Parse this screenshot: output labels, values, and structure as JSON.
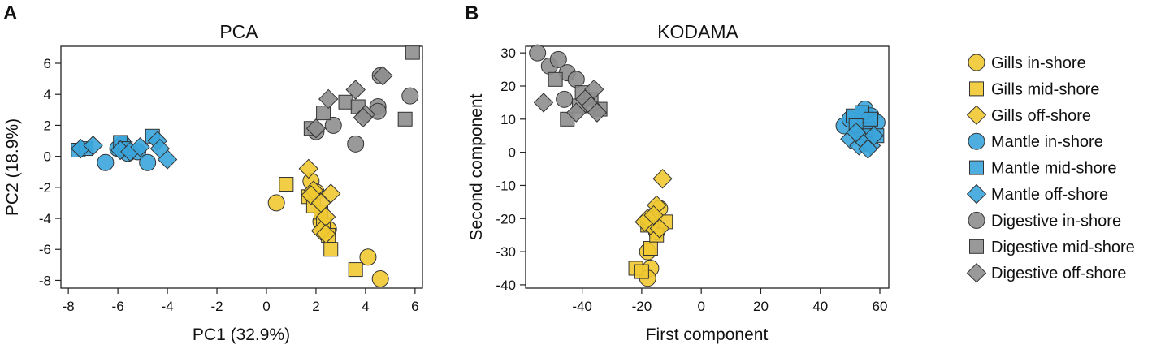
{
  "panels": {
    "a": {
      "letter": "A"
    },
    "b": {
      "letter": "B"
    }
  },
  "legend": {
    "items": [
      {
        "label": "Gills in-shore",
        "tissue": "gills",
        "site": "in"
      },
      {
        "label": "Gills mid-shore",
        "tissue": "gills",
        "site": "mid"
      },
      {
        "label": "Gills off-shore",
        "tissue": "gills",
        "site": "off"
      },
      {
        "label": "Mantle in-shore",
        "tissue": "mantle",
        "site": "in"
      },
      {
        "label": "Mantle mid-shore",
        "tissue": "mantle",
        "site": "mid"
      },
      {
        "label": "Mantle off-shore",
        "tissue": "mantle",
        "site": "off"
      },
      {
        "label": "Digestive in-shore",
        "tissue": "digestive",
        "site": "in"
      },
      {
        "label": "Digestive mid-shore",
        "tissue": "digestive",
        "site": "mid"
      },
      {
        "label": "Digestive off-shore",
        "tissue": "digestive",
        "site": "off"
      }
    ]
  },
  "colors": {
    "gills": "#EFC931",
    "mantle": "#3BA5DC",
    "digestive": "#8E8E8E",
    "stroke": "#333333"
  },
  "shapes": {
    "in": "circle",
    "mid": "square",
    "off": "diamond"
  },
  "chart_data": [
    {
      "type": "scatter",
      "title": "PCA",
      "xlabel": "PC1 (32.9%)",
      "ylabel": "PC2 (18.9%)",
      "xlim": [
        -8.3,
        6.3
      ],
      "ylim": [
        -8.5,
        7.1
      ],
      "xticks": [
        -8,
        -6,
        -4,
        -2,
        0,
        2,
        4,
        6
      ],
      "yticks": [
        -8,
        -6,
        -4,
        -2,
        0,
        2,
        4,
        6
      ],
      "grid": false,
      "series": [
        {
          "name": "Gills in-shore",
          "tissue": "gills",
          "site": "in",
          "points": [
            [
              0.4,
              -3.0
            ],
            [
              1.8,
              -1.6
            ],
            [
              2.0,
              -2.3
            ],
            [
              2.2,
              -4.2
            ],
            [
              2.5,
              -4.7
            ],
            [
              4.1,
              -6.5
            ],
            [
              4.6,
              -7.9
            ]
          ]
        },
        {
          "name": "Gills mid-shore",
          "tissue": "gills",
          "site": "mid",
          "points": [
            [
              0.8,
              -1.8
            ],
            [
              1.7,
              -2.6
            ],
            [
              1.9,
              -3.2
            ],
            [
              2.2,
              -3.6
            ],
            [
              2.3,
              -4.4
            ],
            [
              2.5,
              -5.1
            ],
            [
              2.6,
              -6.0
            ],
            [
              3.6,
              -7.3
            ]
          ]
        },
        {
          "name": "Gills off-shore",
          "tissue": "gills",
          "site": "off",
          "points": [
            [
              1.7,
              -0.8
            ],
            [
              1.9,
              -2.2
            ],
            [
              1.8,
              -2.5
            ],
            [
              2.6,
              -2.4
            ],
            [
              2.2,
              -3.0
            ],
            [
              2.4,
              -3.9
            ],
            [
              2.2,
              -4.8
            ],
            [
              2.4,
              -5.0
            ]
          ]
        },
        {
          "name": "Mantle in-shore",
          "tissue": "mantle",
          "site": "in",
          "points": [
            [
              -6.5,
              -0.4
            ],
            [
              -6.0,
              0.5
            ],
            [
              -5.8,
              0.8
            ],
            [
              -5.6,
              0.2
            ],
            [
              -5.2,
              0.3
            ],
            [
              -4.8,
              -0.4
            ]
          ]
        },
        {
          "name": "Mantle mid-shore",
          "tissue": "mantle",
          "site": "mid",
          "points": [
            [
              -7.6,
              0.4
            ],
            [
              -7.3,
              0.5
            ],
            [
              -5.9,
              0.9
            ],
            [
              -5.7,
              0.5
            ],
            [
              -4.6,
              1.3
            ]
          ]
        },
        {
          "name": "Mantle off-shore",
          "tissue": "mantle",
          "site": "off",
          "points": [
            [
              -7.5,
              0.5
            ],
            [
              -7.0,
              0.7
            ],
            [
              -5.9,
              0.4
            ],
            [
              -5.5,
              0.3
            ],
            [
              -5.1,
              0.6
            ],
            [
              -4.4,
              1.0
            ],
            [
              -4.0,
              -0.2
            ],
            [
              -4.3,
              0.5
            ]
          ]
        },
        {
          "name": "Digestive in-shore",
          "tissue": "digestive",
          "site": "in",
          "points": [
            [
              2.0,
              1.6
            ],
            [
              2.7,
              2.0
            ],
            [
              3.6,
              0.8
            ],
            [
              4.5,
              3.2
            ],
            [
              4.6,
              5.2
            ],
            [
              5.8,
              3.9
            ],
            [
              4.5,
              2.9
            ]
          ]
        },
        {
          "name": "Digestive mid-shore",
          "tissue": "digestive",
          "site": "mid",
          "points": [
            [
              1.8,
              1.8
            ],
            [
              2.3,
              2.8
            ],
            [
              3.2,
              3.5
            ],
            [
              3.7,
              3.2
            ],
            [
              5.6,
              2.4
            ],
            [
              5.9,
              6.7
            ]
          ]
        },
        {
          "name": "Digestive off-shore",
          "tissue": "digestive",
          "site": "off",
          "points": [
            [
              2.0,
              1.8
            ],
            [
              2.5,
              3.7
            ],
            [
              3.6,
              4.3
            ],
            [
              4.0,
              2.7
            ],
            [
              4.7,
              5.2
            ],
            [
              3.9,
              2.5
            ]
          ]
        }
      ]
    },
    {
      "type": "scatter",
      "title": "KODAMA",
      "xlabel": "First component",
      "ylabel": "Second component",
      "xlim": [
        -59,
        63
      ],
      "ylim": [
        -41,
        32
      ],
      "xticks": [
        -40,
        -20,
        0,
        20,
        40,
        60
      ],
      "yticks": [
        -40,
        -30,
        -20,
        -10,
        0,
        10,
        20,
        30
      ],
      "grid": false,
      "series": [
        {
          "name": "Gills in-shore",
          "tissue": "gills",
          "site": "in",
          "points": [
            [
              -18,
              -30
            ],
            [
              -17,
              -35
            ],
            [
              -18,
              -38
            ],
            [
              -14,
              -17
            ],
            [
              -16,
              -20
            ],
            [
              -15,
              -24
            ]
          ]
        },
        {
          "name": "Gills mid-shore",
          "tissue": "gills",
          "site": "mid",
          "points": [
            [
              -22,
              -35
            ],
            [
              -20,
              -36
            ],
            [
              -17,
              -29
            ],
            [
              -12,
              -21
            ],
            [
              -15,
              -25
            ],
            [
              -18,
              -22
            ]
          ]
        },
        {
          "name": "Gills off-shore",
          "tissue": "gills",
          "site": "off",
          "points": [
            [
              -13,
              -8
            ],
            [
              -17,
              -22
            ],
            [
              -15,
              -16
            ],
            [
              -18,
              -20
            ],
            [
              -14,
              -23
            ],
            [
              -19,
              -21
            ],
            [
              -16,
              -19
            ]
          ]
        },
        {
          "name": "Mantle in-shore",
          "tissue": "mantle",
          "site": "in",
          "points": [
            [
              48,
              8
            ],
            [
              50,
              10
            ],
            [
              55,
              13
            ],
            [
              57,
              11
            ],
            [
              59,
              9
            ],
            [
              53,
              6
            ],
            [
              55,
              9
            ]
          ]
        },
        {
          "name": "Mantle mid-shore",
          "tissue": "mantle",
          "site": "mid",
          "points": [
            [
              51,
              11
            ],
            [
              54,
              12
            ],
            [
              56,
              7
            ],
            [
              59,
              5
            ],
            [
              52,
              8
            ],
            [
              57,
              10
            ],
            [
              55,
              5
            ]
          ]
        },
        {
          "name": "Mantle off-shore",
          "tissue": "mantle",
          "site": "off",
          "points": [
            [
              50,
              4
            ],
            [
              53,
              2
            ],
            [
              55,
              3
            ],
            [
              57,
              2
            ],
            [
              58,
              5
            ],
            [
              52,
              6
            ],
            [
              56,
              1
            ]
          ]
        },
        {
          "name": "Digestive in-shore",
          "tissue": "digestive",
          "site": "in",
          "points": [
            [
              -55,
              30
            ],
            [
              -51,
              26
            ],
            [
              -48,
              28
            ],
            [
              -45,
              24
            ],
            [
              -42,
              22
            ],
            [
              -46,
              16
            ]
          ]
        },
        {
          "name": "Digestive mid-shore",
          "tissue": "digestive",
          "site": "mid",
          "points": [
            [
              -49,
              22
            ],
            [
              -45,
              10
            ],
            [
              -40,
              18
            ],
            [
              -37,
              16
            ],
            [
              -34,
              13
            ],
            [
              -41,
              14
            ]
          ]
        },
        {
          "name": "Digestive off-shore",
          "tissue": "digestive",
          "site": "off",
          "points": [
            [
              -53,
              15
            ],
            [
              -42,
              12
            ],
            [
              -39,
              16
            ],
            [
              -36,
              19
            ],
            [
              -37,
              14
            ],
            [
              -35,
              12
            ]
          ]
        }
      ]
    }
  ]
}
